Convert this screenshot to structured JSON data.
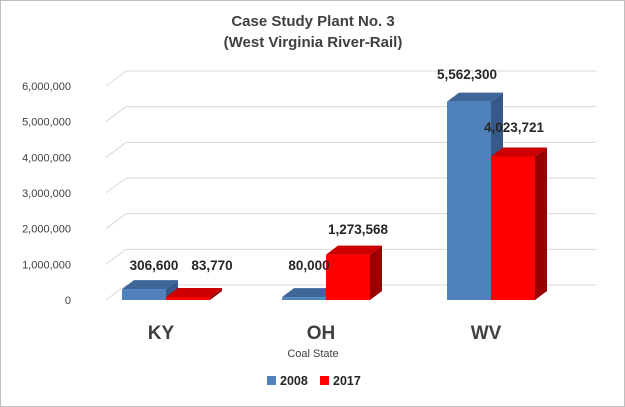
{
  "chart_data": {
    "type": "bar",
    "title": [
      "Case Study Plant No. 3",
      "(West Virginia River-Rail)"
    ],
    "xlabel": "Coal State",
    "ylabel": "",
    "categories": [
      "KY",
      "OH",
      "WV"
    ],
    "series": [
      {
        "name": "2008",
        "values": [
          306600,
          80000,
          5562300
        ],
        "labels": [
          "306,600",
          "80,000",
          "5,562,300"
        ],
        "color": "#4f81bd",
        "side": "#36598a",
        "top": "#3d6699"
      },
      {
        "name": "2017",
        "values": [
          83770,
          1273568,
          4023721
        ],
        "labels": [
          "83,770",
          "1,273,568",
          "4,023,721"
        ],
        "color": "#ff0000",
        "side": "#990000",
        "top": "#cc0000"
      }
    ],
    "ylim": [
      0,
      6000000
    ],
    "yticks": [
      0,
      1000000,
      2000000,
      3000000,
      4000000,
      5000000,
      6000000
    ],
    "ytick_labels": [
      "0",
      "1,000,000",
      "2,000,000",
      "3,000,000",
      "4,000,000",
      "5,000,000",
      "6,000,000"
    ],
    "grid": true,
    "legend": "bottom",
    "projection": "3d"
  }
}
